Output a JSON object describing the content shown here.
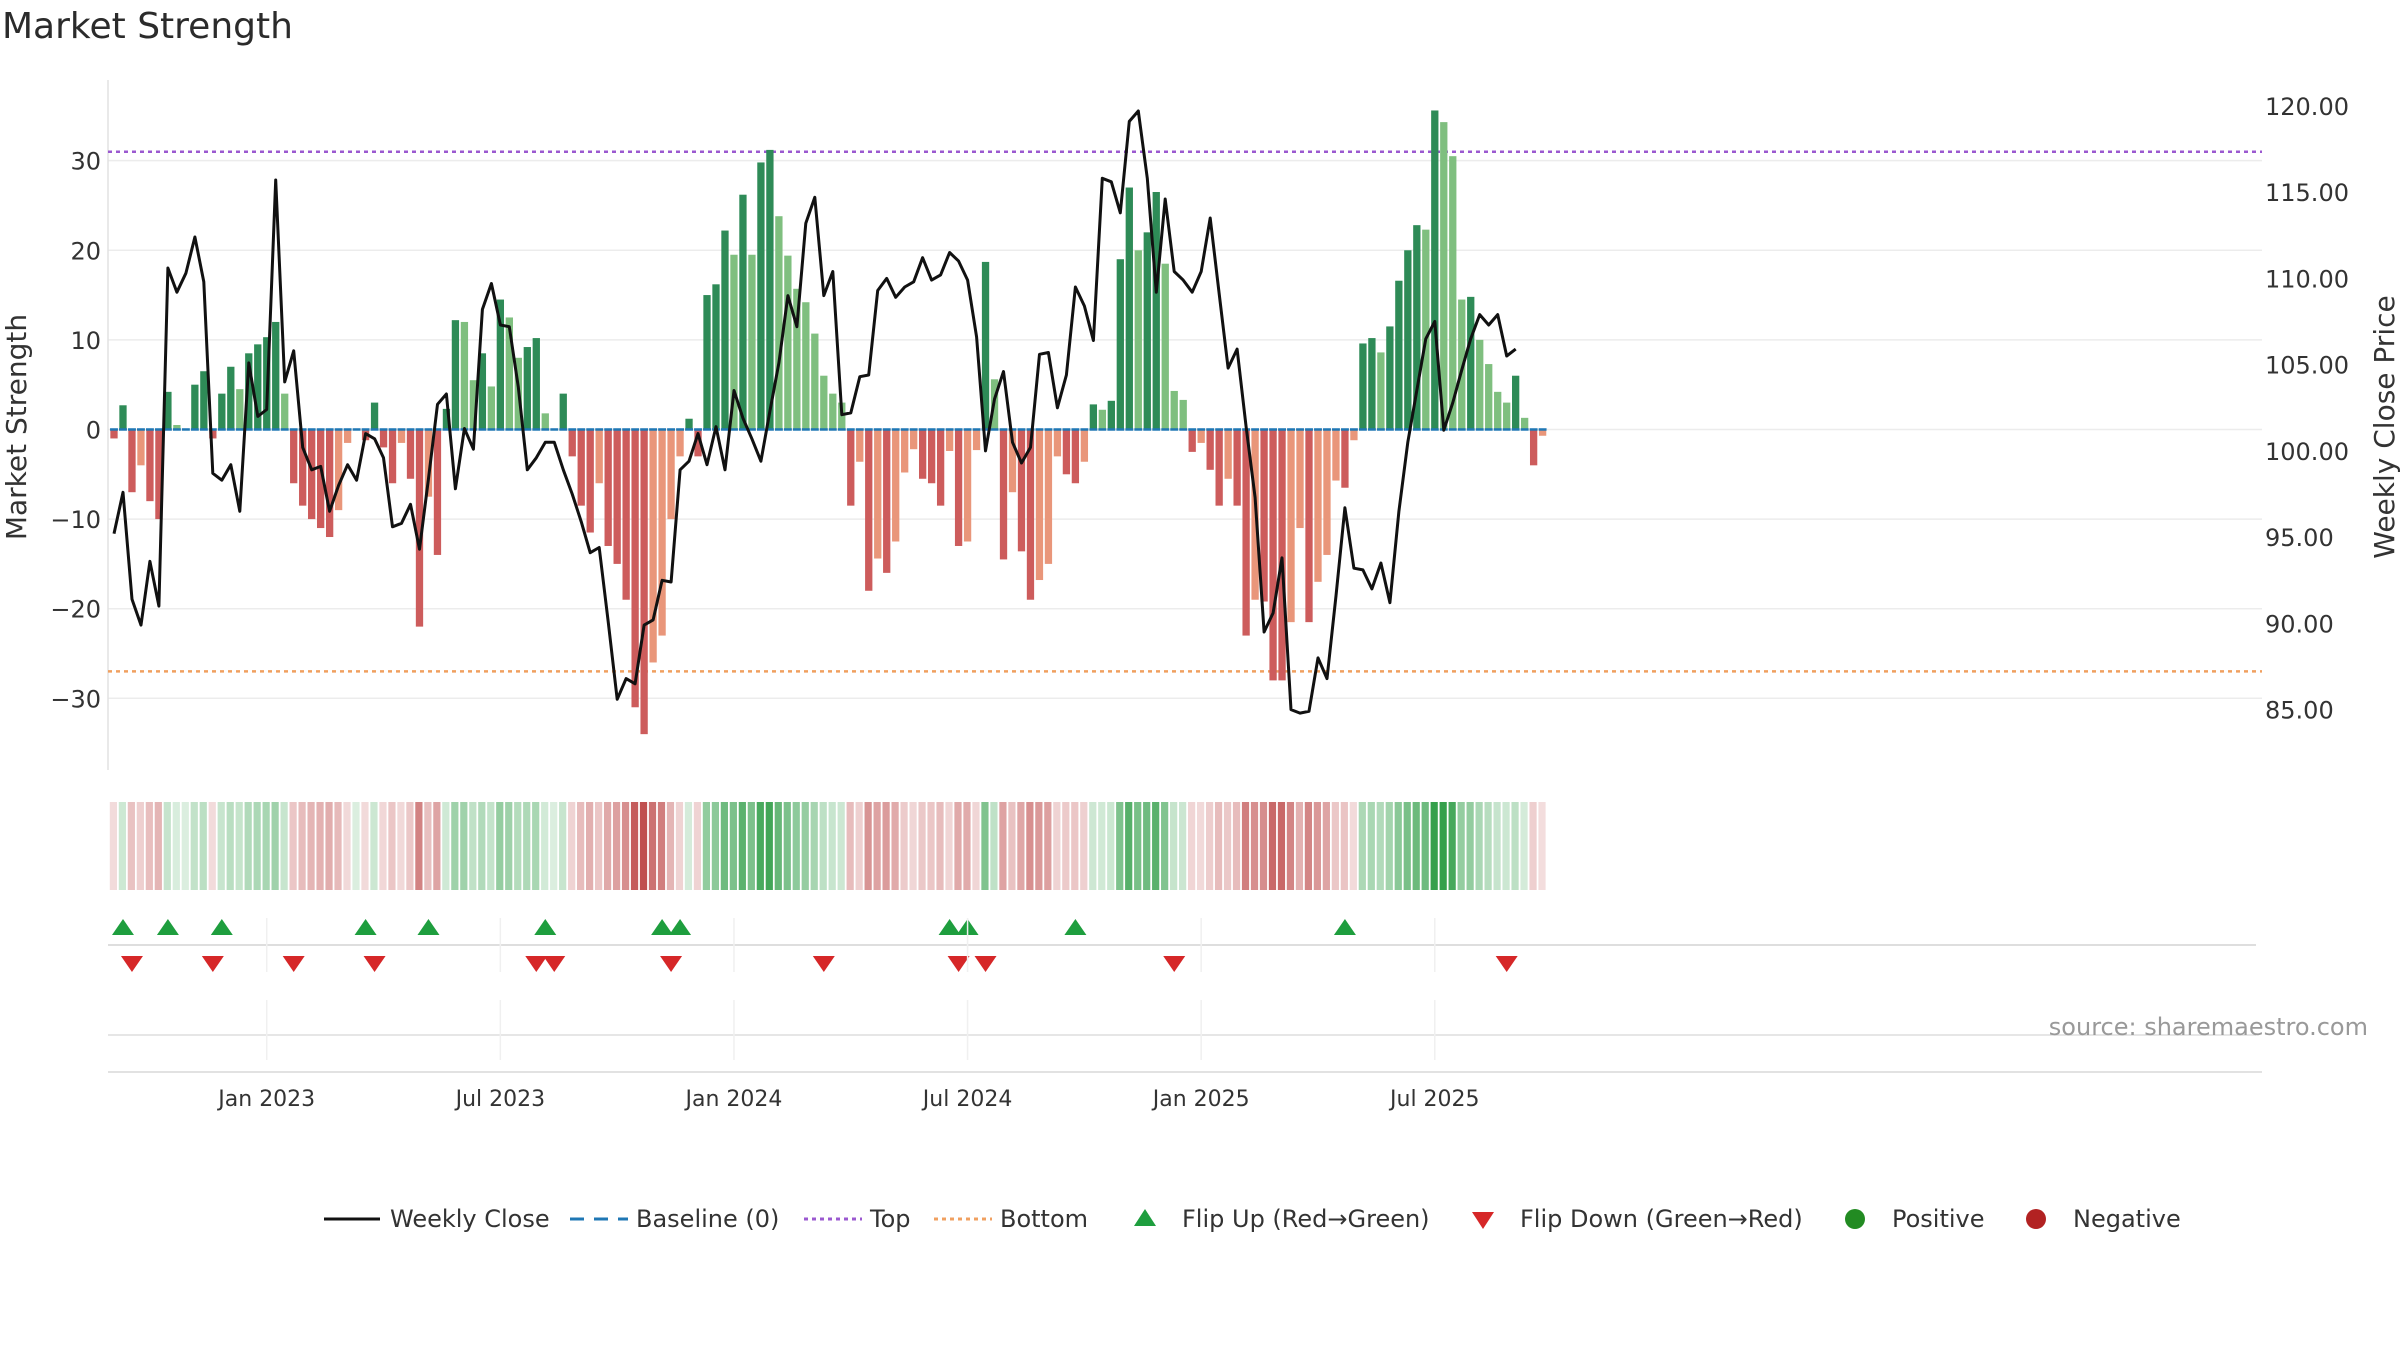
{
  "chart_data": {
    "type": "bar",
    "title": "Market Strength",
    "ylabel_left": "Market Strength",
    "ylabel_right": "Weekly Close Price",
    "left_axis": {
      "ylim": [
        -38,
        39
      ],
      "ticks": [
        30,
        20,
        10,
        0,
        -10,
        -20,
        -30
      ],
      "tick_labels": [
        "30",
        "20",
        "10",
        "0",
        "−10",
        "−20",
        "−30"
      ]
    },
    "right_axis": {
      "ylim": [
        81.5,
        121.5
      ],
      "ticks": [
        120,
        115,
        110,
        105,
        100,
        95,
        90,
        85
      ],
      "tick_labels": [
        "120.00",
        "115.00",
        "110.00",
        "105.00",
        "100.00",
        "95.00",
        "90.00",
        "85.00"
      ]
    },
    "top_level": 31,
    "bottom_level": -27,
    "x_ticks": [
      {
        "week": 17,
        "label": "Jan 2023"
      },
      {
        "week": 43,
        "label": "Jul 2023"
      },
      {
        "week": 69,
        "label": "Jan 2024"
      },
      {
        "week": 95,
        "label": "Jul 2024"
      },
      {
        "week": 121,
        "label": "Jan 2025"
      },
      {
        "week": 147,
        "label": "Jul 2025"
      }
    ],
    "strength": [
      -1,
      2.7,
      -7,
      -4,
      -8,
      -10,
      4.2,
      0.5,
      0,
      5,
      6.5,
      -1,
      4,
      7,
      4.5,
      8.5,
      9.5,
      10.3,
      12,
      4,
      -6,
      -8.5,
      -10,
      -11,
      -12,
      -9,
      -1.5,
      0,
      -1.2,
      3,
      -2,
      -6,
      -1.5,
      -5.5,
      -22,
      -7.5,
      -14,
      2.3,
      12.2,
      12,
      5.5,
      8.5,
      4.8,
      14.5,
      12.5,
      8,
      9.2,
      10.2,
      1.8,
      0,
      4,
      -3,
      -8.5,
      -11.5,
      -6,
      -13,
      -15,
      -19,
      -31,
      -34,
      -26,
      -23,
      -10,
      -3,
      1.2,
      -3,
      15,
      16.2,
      22.2,
      19.5,
      26.2,
      19.5,
      29.8,
      31.2,
      23.8,
      19.4,
      15.7,
      14.2,
      10.7,
      6,
      4,
      3,
      -8.5,
      -3.6,
      -18,
      -14.4,
      -16,
      -12.5,
      -4.8,
      -2.2,
      -5.5,
      -6,
      -8.5,
      -2.4,
      -13,
      -12.5,
      -2.3,
      18.7,
      5.6,
      -14.5,
      -7,
      -13.6,
      -19,
      -16.8,
      -15,
      -3,
      -5,
      -6,
      -3.6,
      2.8,
      2.2,
      3.2,
      19,
      27,
      20,
      22,
      26.5,
      18.5,
      4.3,
      3.3,
      -2.5,
      -1.5,
      -4.5,
      -8.5,
      -5.5,
      -8.5,
      -23,
      -19,
      -19.2,
      -28,
      -28,
      -21.5,
      -11,
      -21.5,
      -17,
      -14,
      -5.7,
      -6.5,
      -1.2,
      9.6,
      10.2,
      8.6,
      11.5,
      16.6,
      20,
      22.8,
      22.3,
      35.6,
      34.3,
      30.5,
      14.5,
      14.8,
      10,
      7.3,
      4.2,
      3,
      6,
      1.3,
      -4,
      -0.7
    ],
    "weekly_close": [
      95.2,
      97.6,
      91.4,
      89.9,
      93.6,
      91,
      110.6,
      109.2,
      110.3,
      112.4,
      109.8,
      98.7,
      98.3,
      99.2,
      96.5,
      105.1,
      102,
      102.4,
      115.7,
      104,
      105.8,
      100.2,
      98.9,
      99.1,
      96.5,
      98,
      99.2,
      98.3,
      101,
      100.7,
      99.6,
      95.6,
      95.8,
      96.9,
      94.3,
      98.4,
      102.7,
      103.3,
      97.8,
      101.3,
      100.1,
      108.2,
      109.7,
      107.3,
      107.2,
      103.7,
      98.9,
      99.6,
      100.5,
      100.5,
      98.9,
      97.5,
      95.9,
      94.1,
      94.4,
      90.1,
      85.6,
      86.8,
      86.5,
      89.9,
      90.2,
      92.5,
      92.4,
      98.9,
      99.4,
      101,
      99.2,
      101.4,
      98.9,
      103.5,
      101.9,
      100.7,
      99.4,
      102.3,
      105.1,
      109,
      107.2,
      113.2,
      114.7,
      109,
      110.4,
      102.1,
      102.2,
      104.3,
      104.4,
      109.3,
      110,
      108.9,
      109.5,
      109.8,
      111.2,
      109.9,
      110.2,
      111.5,
      111,
      109.9,
      106.6,
      100,
      103,
      104.6,
      100.5,
      99.3,
      100.2,
      105.6,
      105.7,
      102.5,
      104.4,
      109.5,
      108.4,
      106.4,
      115.8,
      115.6,
      113.8,
      119.1,
      119.7,
      115.8,
      109.2,
      114.6,
      110.4,
      109.9,
      109.2,
      110.4,
      113.5,
      109.1,
      104.8,
      105.9,
      101.4,
      97.3,
      89.5,
      90.6,
      93.8,
      85,
      84.8,
      84.9,
      88,
      86.8,
      91.6,
      96.7,
      93.2,
      93.1,
      92,
      93.5,
      91.2,
      96.5,
      100.5,
      103.5,
      106.5,
      107.5,
      101.2,
      102.8,
      104.7,
      106.5,
      107.9,
      107.3,
      107.9,
      105.5,
      105.9
    ],
    "flip_up_weeks": [
      1,
      6,
      12,
      28,
      35,
      48,
      61,
      63,
      93,
      95,
      107,
      137
    ],
    "flip_down_weeks": [
      2,
      11,
      20,
      29,
      47,
      49,
      62,
      79,
      94,
      97,
      118,
      155
    ],
    "source": "source: sharemaestro.com",
    "legend": [
      {
        "label": "Weekly Close",
        "symbol": "line-solid"
      },
      {
        "label": "Baseline (0)",
        "symbol": "line-dashed"
      },
      {
        "label": "Top",
        "symbol": "line-dotted-purple"
      },
      {
        "label": "Bottom",
        "symbol": "line-dotted-orange"
      },
      {
        "label": "Flip Up (Red→Green)",
        "symbol": "triangle-up"
      },
      {
        "label": "Flip Down (Green→Red)",
        "symbol": "triangle-down"
      },
      {
        "label": "Positive",
        "symbol": "dot-green"
      },
      {
        "label": "Negative",
        "symbol": "dot-red"
      }
    ],
    "colors": {
      "pos_dark": "#2e8b57",
      "pos_light": "#7fbf7f",
      "neg_dark": "#cd5c5c",
      "neg_light": "#e9967a",
      "close_line": "#111111",
      "baseline": "#1f77b4",
      "top_line": "#9b59d0",
      "bottom_line": "#f0a060",
      "flip_up": "#1e9e3e",
      "flip_down": "#d62728",
      "positive_dot": "#228b22",
      "negative_dot": "#b22222"
    }
  }
}
